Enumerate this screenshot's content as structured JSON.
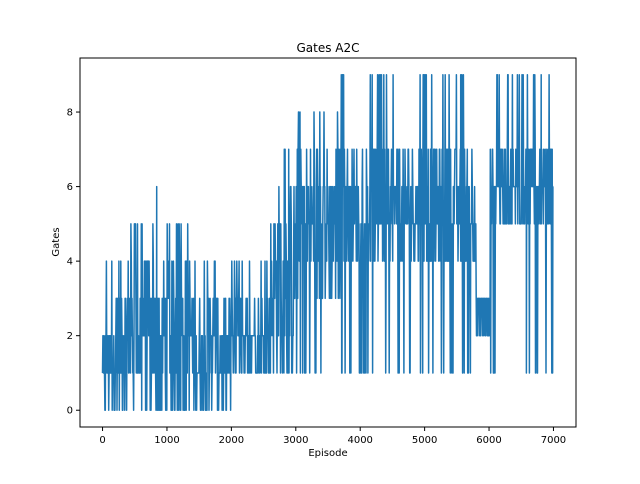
{
  "chart_data": {
    "type": "line",
    "title": "Gates A2C",
    "xlabel": "Episode",
    "ylabel": "Gates",
    "xlim": [
      -350,
      7350
    ],
    "ylim": [
      -0.45,
      9.45
    ],
    "xticks": [
      0,
      1000,
      2000,
      3000,
      4000,
      5000,
      6000,
      7000
    ],
    "yticks": [
      0,
      2,
      4,
      6,
      8
    ],
    "grid": false,
    "color": "#1f77b4",
    "series": [
      {
        "name": "",
        "note": "Noisy per-episode signal; summarized as segments of dense oscillation with envelope (low/high), the dominant band, and occasional spikes.",
        "segments": [
          {
            "x_start": 0,
            "x_end": 200,
            "low": 0,
            "high": 4,
            "band_low": 0,
            "band_high": 2
          },
          {
            "x_start": 200,
            "x_end": 1400,
            "low": 0,
            "high": 5,
            "band_low": 0,
            "band_high": 4
          },
          {
            "x_start": 1400,
            "x_end": 2000,
            "low": 0,
            "high": 4,
            "band_low": 0,
            "band_high": 3
          },
          {
            "x_start": 2000,
            "x_end": 2600,
            "low": 1,
            "high": 4,
            "band_low": 1,
            "band_high": 3
          },
          {
            "x_start": 2600,
            "x_end": 3000,
            "low": 1,
            "high": 7,
            "band_low": 1,
            "band_high": 6
          },
          {
            "x_start": 3000,
            "x_end": 3700,
            "low": 1,
            "high": 8,
            "band_low": 3,
            "band_high": 7
          },
          {
            "x_start": 3700,
            "x_end": 5800,
            "low": 1,
            "high": 9,
            "band_low": 4,
            "band_high": 7
          },
          {
            "x_start": 5800,
            "x_end": 6020,
            "low": 1,
            "high": 3,
            "band_low": 2,
            "band_high": 3
          },
          {
            "x_start": 6020,
            "x_end": 7000,
            "low": 1,
            "high": 9,
            "band_low": 5,
            "band_high": 7
          }
        ],
        "spikes": [
          {
            "x": 840,
            "y": 6
          },
          {
            "x": 2890,
            "y": 7
          },
          {
            "x": 5560,
            "y": 9
          },
          {
            "x": 6810,
            "y": 9
          },
          {
            "x": 4970,
            "y": 1
          },
          {
            "x": 5440,
            "y": 1
          },
          {
            "x": 6580,
            "y": 1
          }
        ]
      }
    ]
  }
}
